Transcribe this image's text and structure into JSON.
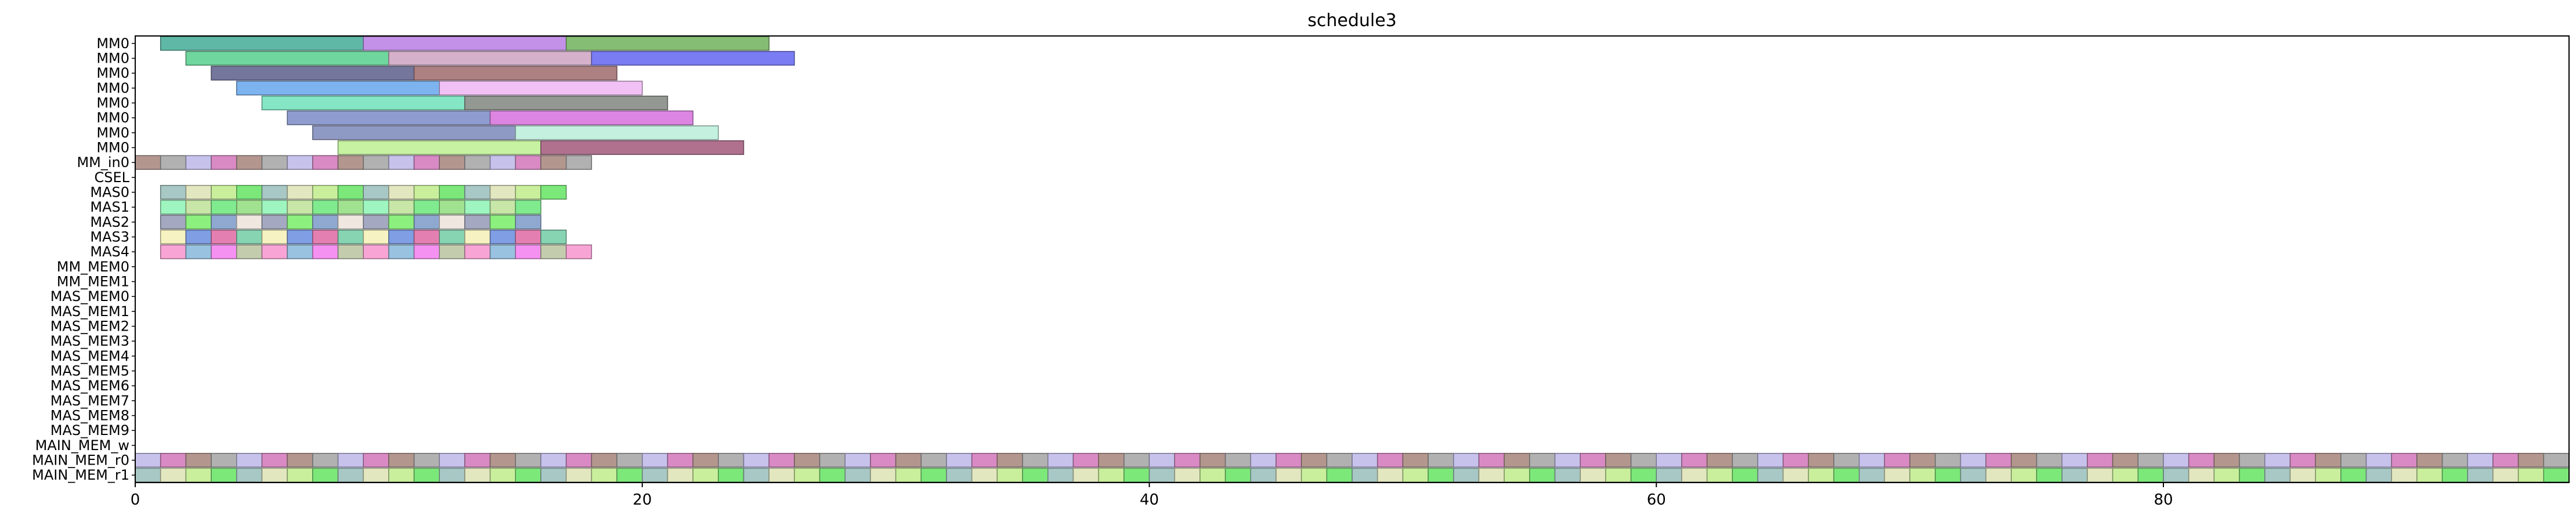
{
  "chart_data": {
    "type": "bar",
    "orientation": "horizontal",
    "title": "schedule3",
    "xlabel": "",
    "ylabel": "",
    "xlim": [
      0,
      96
    ],
    "x_ticks": [
      0,
      20,
      40,
      60,
      80
    ],
    "grid": false,
    "legend": "none",
    "categories": [
      "MM0",
      "MM0",
      "MM0",
      "MM0",
      "MM0",
      "MM0",
      "MM0",
      "MM0",
      "MM_in0",
      "CSEL",
      "MAS0",
      "MAS1",
      "MAS2",
      "MAS3",
      "MAS4",
      "MM_MEM0",
      "MM_MEM1",
      "MAS_MEM0",
      "MAS_MEM1",
      "MAS_MEM2",
      "MAS_MEM3",
      "MAS_MEM4",
      "MAS_MEM5",
      "MAS_MEM6",
      "MAS_MEM7",
      "MAS_MEM8",
      "MAS_MEM9",
      "MAIN_MEM_w",
      "MAIN_MEM_r0",
      "MAIN_MEM_r1"
    ],
    "mm_rows": [
      {
        "row": 0,
        "tasks": [
          {
            "start": 1,
            "end": 9,
            "color": "#5fb8a6"
          },
          {
            "start": 9,
            "end": 17,
            "color": "#c391e8"
          },
          {
            "start": 17,
            "end": 25,
            "color": "#86bd74"
          }
        ]
      },
      {
        "row": 1,
        "tasks": [
          {
            "start": 2,
            "end": 10,
            "color": "#6fd79e"
          },
          {
            "start": 10,
            "end": 18,
            "color": "#d5b1cb"
          },
          {
            "start": 18,
            "end": 26,
            "color": "#7a7cf4"
          }
        ]
      },
      {
        "row": 2,
        "tasks": [
          {
            "start": 3,
            "end": 11,
            "color": "#74769c"
          },
          {
            "start": 11,
            "end": 19,
            "color": "#ad8082"
          }
        ]
      },
      {
        "row": 3,
        "tasks": [
          {
            "start": 4,
            "end": 12,
            "color": "#7db4ef"
          },
          {
            "start": 12,
            "end": 20,
            "color": "#f1c0f5"
          }
        ]
      },
      {
        "row": 4,
        "tasks": [
          {
            "start": 5,
            "end": 13,
            "color": "#84e6c4"
          },
          {
            "start": 13,
            "end": 21,
            "color": "#939893"
          }
        ]
      },
      {
        "row": 5,
        "tasks": [
          {
            "start": 6,
            "end": 14,
            "color": "#8e9ccf"
          },
          {
            "start": 14,
            "end": 22,
            "color": "#dc86e2"
          }
        ]
      },
      {
        "row": 6,
        "tasks": [
          {
            "start": 7,
            "end": 15,
            "color": "#8f9ac4"
          },
          {
            "start": 15,
            "end": 23,
            "color": "#c4f1df"
          }
        ]
      },
      {
        "row": 7,
        "tasks": [
          {
            "start": 8,
            "end": 16,
            "color": "#c6f2a1"
          },
          {
            "start": 16,
            "end": 24,
            "color": "#b0718f"
          }
        ]
      }
    ],
    "unit_rows": [
      {
        "row": 8,
        "start": 0,
        "count": 18
      },
      {
        "row": 10,
        "start": 1,
        "count": 16
      },
      {
        "row": 11,
        "start": 1,
        "count": 15
      },
      {
        "row": 12,
        "start": 1,
        "count": 15
      },
      {
        "row": 13,
        "start": 1,
        "count": 16
      },
      {
        "row": 14,
        "start": 1,
        "count": 17
      },
      {
        "row": 28,
        "start": 0,
        "count": 96
      },
      {
        "row": 29,
        "start": 0,
        "count": 96
      }
    ],
    "palette": [
      "#c7e6a7",
      "#b1dfe0",
      "#c78a93",
      "#a4a8c0",
      "#c6c2ec",
      "#f57a6f",
      "#87d4b3",
      "#7ce87a",
      "#c1a4d8",
      "#f591f1",
      "#80ea8f",
      "#7c9e7f",
      "#b49aa7",
      "#8cf07f",
      "#d98ac4",
      "#72c2c0",
      "#f6f2c1",
      "#a7c8c5",
      "#e9b8d2",
      "#c4ccae",
      "#a1e290",
      "#6b6d9c",
      "#c3eb8d",
      "#8fa8d0",
      "#b3978f",
      "#f2a6a2",
      "#7f9ee3",
      "#e2e7c0",
      "#9f92ef",
      "#f8a5d6",
      "#9ef5bf",
      "#c8d5a8",
      "#5fd9f0",
      "#f0e8e0",
      "#b1b1b1",
      "#8ccef5",
      "#e47fb1",
      "#c9ef9c",
      "#f56f73",
      "#98c2e0"
    ]
  }
}
